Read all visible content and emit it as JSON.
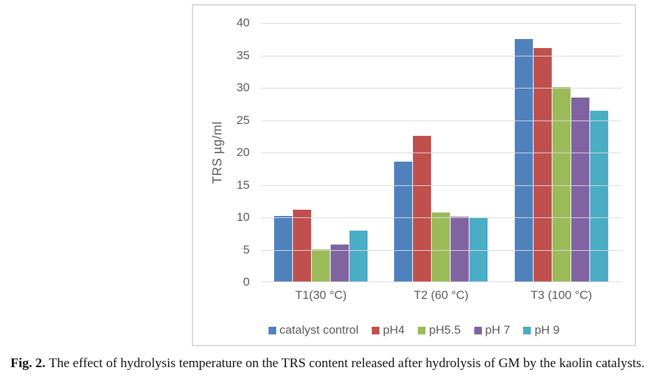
{
  "figure": {
    "caption_label": "Fig. 2.",
    "caption_text": "The effect of hydrolysis temperature on the TRS content released after hydrolysis of GM by the kaolin catalysts."
  },
  "chart_data": {
    "type": "bar",
    "title": "",
    "xlabel": "",
    "ylabel": "TRS µg/ml",
    "ylim": [
      0,
      40
    ],
    "ytick_step": 5,
    "grid": true,
    "legend_position": "bottom",
    "categories": [
      "T1(30 °C)",
      "T2 (60 °C)",
      "T3 (100 °C)"
    ],
    "series": [
      {
        "name": "catalyst control",
        "color": "#4F81BD",
        "values": [
          10.1,
          18.5,
          37.4
        ]
      },
      {
        "name": "pH4",
        "color": "#C0504D",
        "values": [
          11.1,
          22.5,
          36.0
        ]
      },
      {
        "name": "pH5.5",
        "color": "#9BBB59",
        "values": [
          5.0,
          10.7,
          30.0
        ]
      },
      {
        "name": "pH 7",
        "color": "#8064A2",
        "values": [
          5.7,
          10.0,
          28.4
        ]
      },
      {
        "name": "pH 9",
        "color": "#4BACC6",
        "values": [
          7.9,
          9.8,
          26.3
        ]
      }
    ],
    "colors": {
      "axis_text": "#595959",
      "gridline": "#D9D9D9",
      "frame_border": "#D9D9D9"
    }
  }
}
